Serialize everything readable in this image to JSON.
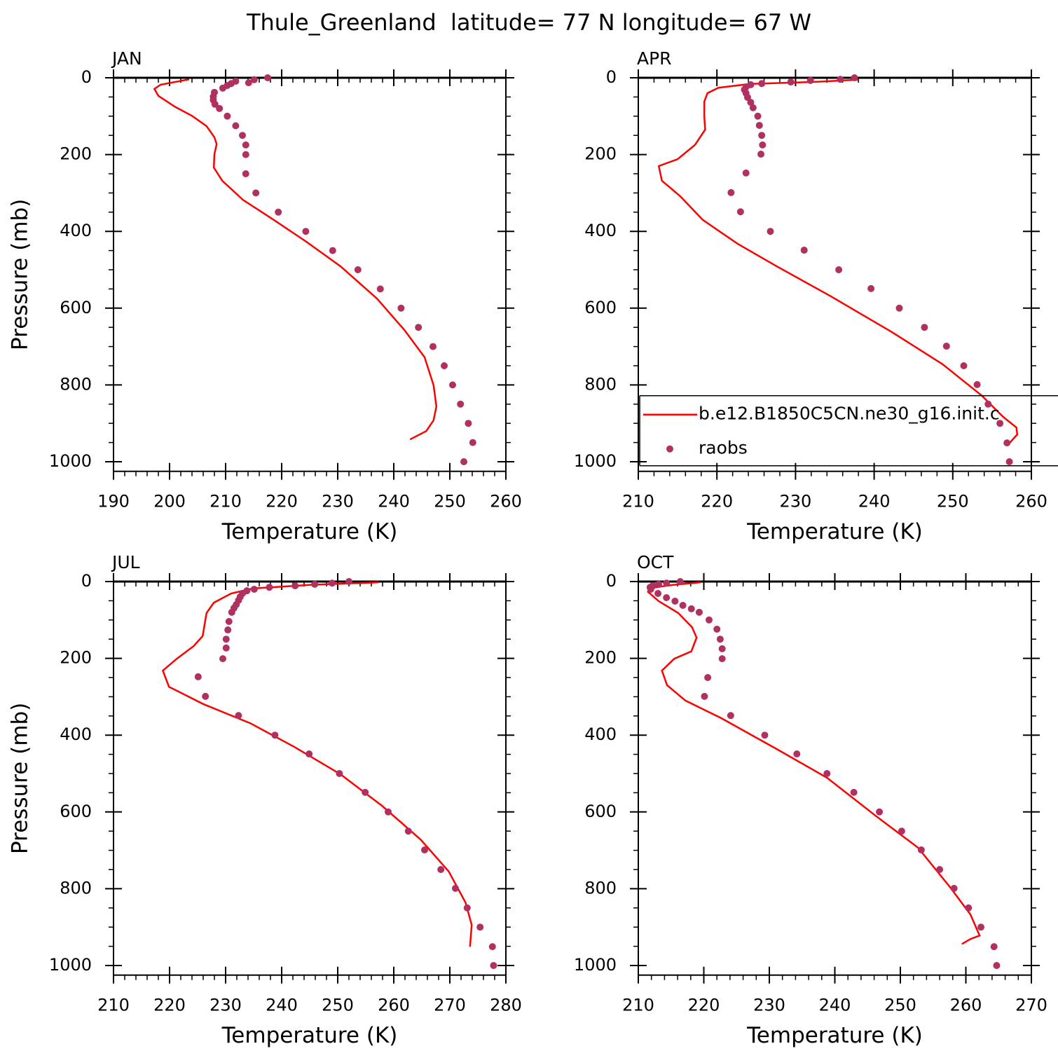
{
  "title": "Thule_Greenland  latitude= 77 N longitude= 67 W",
  "chart_data": [
    {
      "type": "line",
      "title": "JAN",
      "x_label": "Temperature (K)",
      "y_label": "Pressure (mb)",
      "xlim": [
        190,
        260
      ],
      "xticks": [
        190,
        200,
        210,
        220,
        230,
        240,
        250,
        260
      ],
      "ylim": [
        1025,
        0
      ],
      "yticks": [
        0,
        200,
        400,
        600,
        800,
        1000
      ],
      "series": [
        {
          "name": "b.e12.B1850C5CN.ne30_g16.init.c",
          "color": "#ff0000",
          "style": "line",
          "x": [
            203.5,
            198.4,
            197.3,
            198,
            200.9,
            204,
            206.6,
            208,
            208.4,
            208,
            207.9,
            209.4,
            213.1,
            218.8,
            224.4,
            230.5,
            237,
            241.9,
            245.5,
            247.1,
            247.6,
            247.1,
            245.8,
            242.9
          ],
          "y": [
            4,
            18,
            29,
            47,
            75,
            99,
            126,
            155,
            173,
            199,
            234,
            268,
            318,
            372,
            427,
            491,
            575,
            657,
            728,
            801,
            856,
            892,
            920,
            942
          ]
        },
        {
          "name": "raobs",
          "color": "#b03060",
          "style": "markers",
          "x": [
            217.5,
            215.1,
            211.8,
            214.1,
            211,
            210.3,
            209.5,
            208,
            207.8,
            207.8,
            208.1,
            208.9,
            210.3,
            211.8,
            213,
            213.6,
            213.6,
            213.6,
            215.4,
            219.4,
            224.3,
            229.1,
            233.6,
            237.6,
            241.3,
            244.4,
            247,
            249,
            250.5,
            251.9,
            253.3,
            254.1,
            252.5
          ],
          "y": [
            0,
            5,
            9,
            13,
            15,
            20,
            27,
            38,
            49,
            58,
            69,
            80,
            100,
            125,
            150,
            175,
            200,
            250,
            300,
            350,
            400,
            450,
            500,
            550,
            600,
            650,
            700,
            750,
            800,
            850,
            900,
            950,
            1000
          ]
        }
      ]
    },
    {
      "type": "line",
      "title": "APR",
      "x_label": "Temperature (K)",
      "xlim": [
        210,
        260
      ],
      "xticks": [
        210,
        220,
        230,
        240,
        250,
        260
      ],
      "ylim": [
        1025,
        0
      ],
      "yticks": [
        0,
        200,
        400,
        600,
        800,
        1000
      ],
      "legend": "lower-right",
      "series": [
        {
          "name": "b.e12.B1850C5CN.ne30_g16.init.c",
          "color": "#ff0000",
          "style": "line",
          "x": [
            238,
            232.2,
            224.2,
            220.2,
            218.8,
            218.4,
            218.4,
            218.5,
            217.2,
            215,
            212.6,
            213,
            215.3,
            218.2,
            222.6,
            227.6,
            234.4,
            242.4,
            248.7,
            253.7,
            256.4,
            258.1,
            258.2,
            257.1
          ],
          "y": [
            5,
            11,
            16,
            26,
            40,
            62,
            102,
            135,
            175,
            212,
            230,
            268,
            308,
            370,
            432,
            491,
            568,
            664,
            746,
            828,
            883,
            911,
            929,
            954
          ]
        },
        {
          "name": "raobs",
          "color": "#b03060",
          "style": "markers",
          "x": [
            237.5,
            235.7,
            231.9,
            229.4,
            225.7,
            224.3,
            223.7,
            223.5,
            223.7,
            223.9,
            224.3,
            224.6,
            225.2,
            225.4,
            225.7,
            225.8,
            225.6,
            223.7,
            221.8,
            223,
            226.8,
            231.1,
            235.5,
            239.6,
            243.2,
            246.4,
            249.2,
            251.4,
            253.1,
            254.5,
            256,
            256.9,
            257.2
          ],
          "y": [
            0,
            4,
            7,
            11,
            15,
            18,
            24,
            31,
            40,
            51,
            64,
            78,
            100,
            124,
            150,
            175,
            199,
            248,
            299,
            349,
            400,
            449,
            500,
            549,
            600,
            650,
            699,
            750,
            799,
            850,
            900,
            951,
            1000
          ]
        }
      ]
    },
    {
      "type": "line",
      "title": "JUL",
      "x_label": "Temperature (K)",
      "y_label": "Pressure (mb)",
      "xlim": [
        210,
        280
      ],
      "xticks": [
        210,
        220,
        230,
        240,
        250,
        260,
        270,
        280
      ],
      "ylim": [
        1025,
        0
      ],
      "yticks": [
        0,
        200,
        400,
        600,
        800,
        1000
      ],
      "series": [
        {
          "name": "b.e12.B1850C5CN.ne30_g16.init.c",
          "color": "#ff0000",
          "style": "line",
          "x": [
            257.3,
            244.8,
            234.8,
            231,
            227.9,
            226.6,
            225.9,
            224.3,
            221.3,
            218.8,
            219.9,
            226,
            234.4,
            242.3,
            250.5,
            257.9,
            264.8,
            269.8,
            272.8,
            273.9,
            273.6
          ],
          "y": [
            2,
            9,
            18,
            31,
            55,
            82,
            142,
            168,
            201,
            232,
            274,
            319,
            369,
            431,
            502,
            584,
            672,
            755,
            836,
            894,
            951
          ]
        },
        {
          "name": "raobs",
          "color": "#b03060",
          "style": "markers",
          "x": [
            252,
            249,
            245.9,
            242.4,
            237.8,
            235.1,
            233.8,
            233,
            232.6,
            232.3,
            231.9,
            231.5,
            231.1,
            230.6,
            230.4,
            230.1,
            230.1,
            229.5,
            225.1,
            226.4,
            232.3,
            238.8,
            244.9,
            250.3,
            254.9,
            259,
            262.6,
            265.5,
            268.4,
            271,
            273.1,
            275.4,
            277.6,
            277.8
          ],
          "y": [
            0,
            4,
            7,
            11,
            15,
            20,
            24,
            31,
            40,
            49,
            60,
            69,
            80,
            104,
            126,
            150,
            173,
            201,
            248,
            299,
            349,
            400,
            449,
            500,
            549,
            600,
            650,
            699,
            750,
            799,
            850,
            900,
            951,
            1000
          ]
        }
      ]
    },
    {
      "type": "line",
      "title": "OCT",
      "x_label": "Temperature (K)",
      "xlim": [
        210,
        270
      ],
      "xticks": [
        210,
        220,
        230,
        240,
        250,
        260,
        270
      ],
      "ylim": [
        1025,
        0
      ],
      "yticks": [
        0,
        200,
        400,
        600,
        800,
        1000
      ],
      "series": [
        {
          "name": "b.e12.B1850C5CN.ne30_g16.init.c",
          "color": "#ff0000",
          "style": "line",
          "x": [
            219.5,
            215.2,
            212.6,
            211.5,
            213.1,
            216.1,
            218.2,
            218.9,
            218.1,
            215.5,
            213.6,
            214.4,
            217.2,
            222.7,
            231.3,
            238.8,
            246.3,
            252.7,
            257.5,
            260.7,
            262.1,
            260.7,
            259.4
          ],
          "y": [
            2,
            9,
            15,
            27,
            51,
            82,
            119,
            146,
            182,
            201,
            232,
            270,
            310,
            356,
            438,
            511,
            611,
            693,
            794,
            867,
            922,
            931,
            944
          ]
        },
        {
          "name": "raobs",
          "color": "#b03060",
          "style": "markers",
          "x": [
            216.4,
            214.3,
            213.1,
            212.2,
            211.8,
            211.9,
            213,
            214.3,
            215.6,
            216.8,
            218.1,
            219.3,
            220.8,
            222,
            222.5,
            222.8,
            222.8,
            220.6,
            220.1,
            224.1,
            229.3,
            234.2,
            238.8,
            242.9,
            246.8,
            250.2,
            253.2,
            256,
            258.2,
            260.4,
            262.3,
            264.3,
            264.7
          ],
          "y": [
            0,
            4,
            7,
            11,
            15,
            20,
            31,
            42,
            51,
            62,
            71,
            80,
            100,
            124,
            150,
            175,
            201,
            250,
            299,
            349,
            400,
            449,
            500,
            549,
            600,
            650,
            699,
            750,
            799,
            850,
            900,
            951,
            1000
          ]
        }
      ]
    }
  ]
}
